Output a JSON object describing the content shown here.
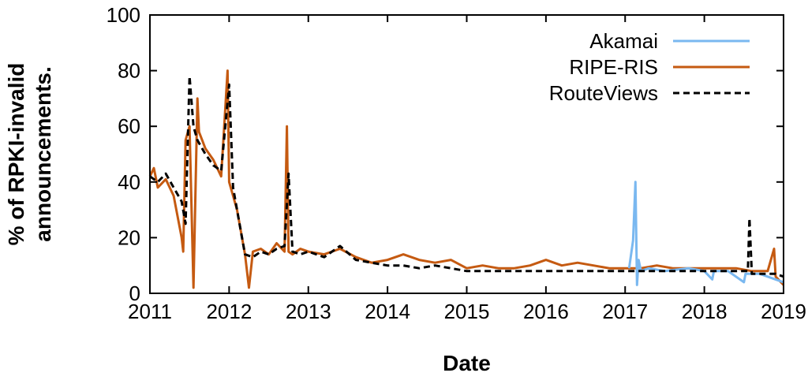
{
  "chart_data": {
    "type": "line",
    "xlabel": "Date",
    "ylabel_line1": "% of RPKI-invalid",
    "ylabel_line2": "announcements.",
    "xlim": [
      2011,
      2019
    ],
    "ylim": [
      0,
      100
    ],
    "x_ticks": [
      "2011",
      "2012",
      "2013",
      "2014",
      "2015",
      "2016",
      "2017",
      "2018",
      "2019"
    ],
    "y_ticks": [
      "0",
      "20",
      "40",
      "60",
      "80",
      "100"
    ],
    "grid": false,
    "legend_position": "top-right",
    "colors": {
      "Akamai": "#7ab8f0",
      "RIPE-RIS": "#c55a11",
      "RouteViews": "#000000"
    },
    "series": [
      {
        "name": "Akamai",
        "style": "solid",
        "x": [
          2017.05,
          2017.1,
          2017.13,
          2017.15,
          2017.17,
          2017.2,
          2017.3,
          2017.5,
          2017.8,
          2018.0,
          2018.1,
          2018.12,
          2018.3,
          2018.5,
          2018.52,
          2018.7,
          2018.9,
          2019.0
        ],
        "y": [
          9,
          19,
          40,
          3,
          12,
          8,
          9,
          8,
          9,
          8,
          5,
          8,
          8,
          4,
          7,
          7,
          5,
          4
        ]
      },
      {
        "name": "RIPE-RIS",
        "style": "solid",
        "x": [
          2011.0,
          2011.05,
          2011.1,
          2011.2,
          2011.3,
          2011.4,
          2011.42,
          2011.45,
          2011.5,
          2011.55,
          2011.6,
          2011.62,
          2011.7,
          2011.8,
          2011.9,
          2011.98,
          2012.0,
          2012.05,
          2012.1,
          2012.2,
          2012.25,
          2012.3,
          2012.4,
          2012.5,
          2012.6,
          2012.7,
          2012.73,
          2012.75,
          2012.8,
          2012.9,
          2013.0,
          2013.2,
          2013.4,
          2013.6,
          2013.8,
          2014.0,
          2014.2,
          2014.4,
          2014.6,
          2014.8,
          2015.0,
          2015.2,
          2015.4,
          2015.6,
          2015.8,
          2016.0,
          2016.2,
          2016.4,
          2016.6,
          2016.8,
          2017.0,
          2017.2,
          2017.4,
          2017.6,
          2017.8,
          2018.0,
          2018.2,
          2018.4,
          2018.6,
          2018.8,
          2018.88,
          2018.9,
          2019.0
        ],
        "y": [
          42,
          45,
          38,
          41,
          35,
          20,
          15,
          55,
          60,
          2,
          70,
          58,
          52,
          48,
          42,
          80,
          40,
          35,
          30,
          14,
          2,
          15,
          16,
          14,
          18,
          15,
          60,
          15,
          14,
          16,
          15,
          14,
          16,
          13,
          11,
          12,
          14,
          12,
          11,
          12,
          9,
          10,
          9,
          9,
          10,
          12,
          10,
          11,
          10,
          9,
          9,
          9,
          10,
          9,
          9,
          9,
          9,
          9,
          8,
          8,
          16,
          6,
          3
        ]
      },
      {
        "name": "RouteViews",
        "style": "dashed",
        "x": [
          2011.0,
          2011.1,
          2011.2,
          2011.3,
          2011.4,
          2011.45,
          2011.5,
          2011.55,
          2011.6,
          2011.7,
          2011.8,
          2011.9,
          2012.0,
          2012.05,
          2012.1,
          2012.2,
          2012.3,
          2012.4,
          2012.5,
          2012.6,
          2012.7,
          2012.75,
          2012.8,
          2012.9,
          2013.0,
          2013.2,
          2013.4,
          2013.6,
          2013.8,
          2014.0,
          2014.2,
          2014.4,
          2014.6,
          2014.8,
          2015.0,
          2015.2,
          2015.4,
          2015.6,
          2015.8,
          2016.0,
          2016.2,
          2016.4,
          2016.6,
          2016.8,
          2017.0,
          2017.2,
          2017.4,
          2017.6,
          2017.8,
          2018.0,
          2018.2,
          2018.4,
          2018.55,
          2018.57,
          2018.6,
          2018.8,
          2018.9,
          2019.0
        ],
        "y": [
          42,
          40,
          43,
          38,
          33,
          25,
          78,
          60,
          55,
          50,
          46,
          44,
          75,
          38,
          30,
          14,
          13,
          15,
          14,
          16,
          17,
          43,
          15,
          14,
          15,
          13,
          17,
          12,
          11,
          10,
          10,
          9,
          10,
          9,
          8,
          8,
          8,
          8,
          8,
          8,
          8,
          8,
          8,
          8,
          8,
          8,
          8,
          8,
          8,
          8,
          8,
          8,
          8,
          27,
          7,
          7,
          7,
          6
        ]
      }
    ]
  }
}
